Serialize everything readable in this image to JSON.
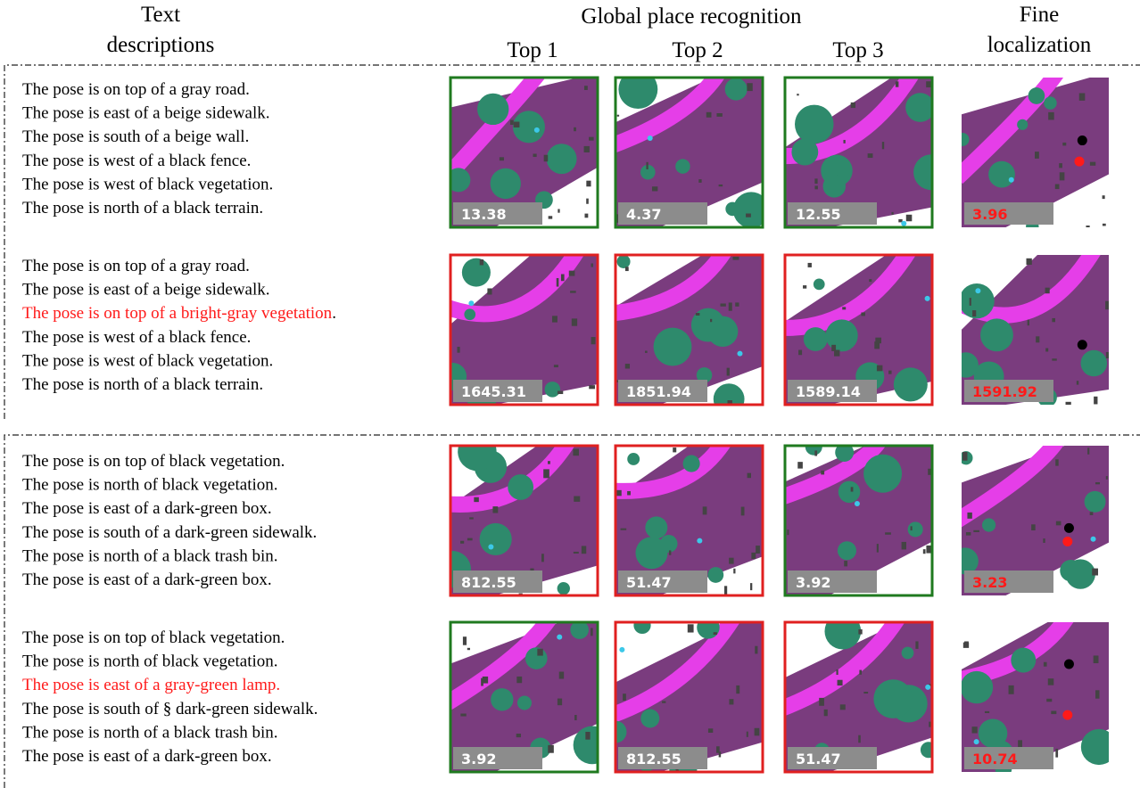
{
  "header": {
    "text_descriptions": [
      "Text",
      "descriptions"
    ],
    "global": "Global place recognition",
    "tops": [
      "Top 1",
      "Top 2",
      "Top 3"
    ],
    "fine": [
      "Fine",
      "localization"
    ]
  },
  "rows": [
    {
      "sentences": [
        {
          "text": "The pose is on top of a gray road.",
          "color": "#000000"
        },
        {
          "text": "The pose is east of a beige sidewalk.",
          "color": "#000000"
        },
        {
          "text": "The pose is south of a beige wall.",
          "color": "#000000"
        },
        {
          "text": "The pose is west of a black fence.",
          "color": "#000000"
        },
        {
          "text": "The pose is west of black vegetation.",
          "color": "#000000"
        },
        {
          "text": "The pose is north of a black terrain.",
          "color": "#000000"
        }
      ],
      "results": [
        {
          "score": 13.38,
          "border": "#1f7a1f"
        },
        {
          "score": 4.37,
          "border": "#1f7a1f"
        },
        {
          "score": 12.55,
          "border": "#1f7a1f"
        }
      ],
      "fine": {
        "score": 3.96,
        "color": "#ff1a1a"
      }
    },
    {
      "sentences": [
        {
          "text": "The pose is on top of a gray road.",
          "color": "#000000"
        },
        {
          "text": "The pose is east of a beige sidewalk.",
          "color": "#000000"
        },
        {
          "text": "The pose is on top of a bright-gray vegetation",
          "color": "#ff1a1a",
          "tail": "."
        },
        {
          "text": "The pose is west of a black fence.",
          "color": "#000000"
        },
        {
          "text": "The pose is west of black vegetation.",
          "color": "#000000"
        },
        {
          "text": "The pose is north of a black terrain.",
          "color": "#000000"
        }
      ],
      "results": [
        {
          "score": 1645.31,
          "border": "#e02020"
        },
        {
          "score": 1851.94,
          "border": "#e02020"
        },
        {
          "score": 1589.14,
          "border": "#e02020"
        }
      ],
      "fine": {
        "score": 1591.92,
        "color": "#ff1a1a"
      }
    },
    {
      "sentences": [
        {
          "text": "The pose is on top of black vegetation.",
          "color": "#000000"
        },
        {
          "text": "The pose is north of black vegetation.",
          "color": "#000000"
        },
        {
          "text": "The pose is east of a dark-green box.",
          "color": "#000000"
        },
        {
          "text": "The pose is south of a dark-green sidewalk.",
          "color": "#000000"
        },
        {
          "text": "The pose is north of a black trash bin.",
          "color": "#000000"
        },
        {
          "text": "The pose is east of a dark-green box.",
          "color": "#000000"
        }
      ],
      "results": [
        {
          "score": 812.55,
          "border": "#e02020"
        },
        {
          "score": 51.47,
          "border": "#e02020"
        },
        {
          "score": 3.92,
          "border": "#1f7a1f"
        }
      ],
      "fine": {
        "score": 3.23,
        "color": "#ff1a1a"
      }
    },
    {
      "sentences": [
        {
          "text": "The pose is on top of black vegetation.",
          "color": "#000000"
        },
        {
          "text": "The pose is north of black vegetation.",
          "color": "#000000"
        },
        {
          "text": "The pose is east of a gray-green lamp.",
          "color": "#ff1a1a"
        },
        {
          "text": "The pose is south of § dark-green sidewalk.",
          "color": "#000000"
        },
        {
          "text": "The pose is north of a black trash bin.",
          "color": "#000000"
        },
        {
          "text": "The pose is east of a dark-green box.",
          "color": "#000000"
        }
      ],
      "results": [
        {
          "score": 3.92,
          "border": "#1f7a1f"
        },
        {
          "score": 812.55,
          "border": "#e02020"
        },
        {
          "score": 51.47,
          "border": "#e02020"
        }
      ],
      "fine": {
        "score": 10.74,
        "color": "#ff1a1a"
      }
    }
  ]
}
